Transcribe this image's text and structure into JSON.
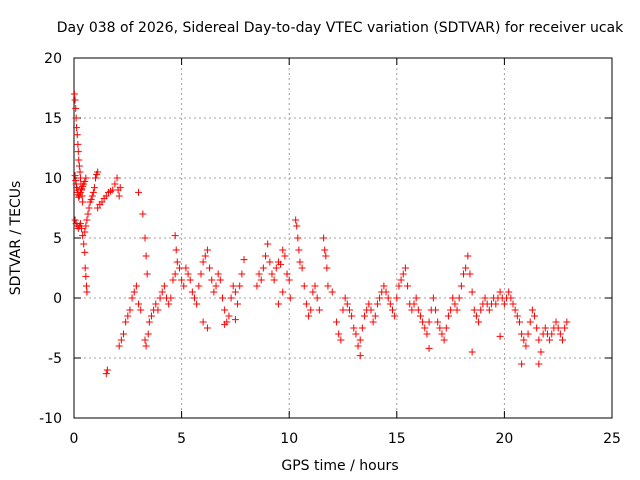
{
  "chart_data": {
    "type": "scatter",
    "title": "Day 038 of 2026, Sidereal Day-to-day VTEC variation (SDTVAR) for receiver ucak",
    "xlabel": "GPS time / hours",
    "ylabel": "SDTVAR / TECUs",
    "xlim": [
      0,
      25
    ],
    "ylim": [
      -10,
      20
    ],
    "xticks": [
      0,
      5,
      10,
      15,
      20,
      25
    ],
    "yticks": [
      -10,
      -5,
      0,
      5,
      10,
      15,
      20
    ],
    "grid": true,
    "marker": "plus",
    "color": "#ff0000",
    "series": [
      {
        "name": "SDTVAR",
        "points": [
          [
            0.02,
            17
          ],
          [
            0.05,
            16.5
          ],
          [
            0.08,
            15.8
          ],
          [
            0.1,
            15
          ],
          [
            0.12,
            14.2
          ],
          [
            0.15,
            13.6
          ],
          [
            0.18,
            12.8
          ],
          [
            0.2,
            12.2
          ],
          [
            0.22,
            11.5
          ],
          [
            0.25,
            11
          ],
          [
            0.28,
            10.5
          ],
          [
            0.3,
            10
          ],
          [
            0.32,
            9.5
          ],
          [
            0.35,
            9
          ],
          [
            0.38,
            8.5
          ],
          [
            0.4,
            8
          ],
          [
            0.05,
            10.2
          ],
          [
            0.08,
            9.8
          ],
          [
            0.1,
            9.5
          ],
          [
            0.12,
            9.2
          ],
          [
            0.15,
            9
          ],
          [
            0.18,
            8.8
          ],
          [
            0.2,
            8.6
          ],
          [
            0.22,
            8.4
          ],
          [
            0.25,
            8.5
          ],
          [
            0.3,
            8.8
          ],
          [
            0.35,
            9.1
          ],
          [
            0.4,
            9.3
          ],
          [
            0.45,
            9.5
          ],
          [
            0.5,
            9.7
          ],
          [
            0.55,
            10
          ],
          [
            0.05,
            6.5
          ],
          [
            0.1,
            6.2
          ],
          [
            0.15,
            6
          ],
          [
            0.2,
            5.8
          ],
          [
            0.25,
            6
          ],
          [
            0.3,
            6.2
          ],
          [
            0.35,
            5.8
          ],
          [
            0.4,
            5.2
          ],
          [
            0.45,
            4.5
          ],
          [
            0.5,
            3.8
          ],
          [
            0.52,
            2.5
          ],
          [
            0.55,
            1.8
          ],
          [
            0.58,
            1
          ],
          [
            0.6,
            0.5
          ],
          [
            0.5,
            5.5
          ],
          [
            0.55,
            6
          ],
          [
            0.6,
            6.5
          ],
          [
            0.65,
            7
          ],
          [
            0.7,
            7.5
          ],
          [
            0.75,
            8
          ],
          [
            0.8,
            8.2
          ],
          [
            0.85,
            8.5
          ],
          [
            0.9,
            8.8
          ],
          [
            0.95,
            9.2
          ],
          [
            1,
            10
          ],
          [
            1.05,
            10.3
          ],
          [
            1.1,
            10.5
          ],
          [
            1.1,
            7.5
          ],
          [
            1.2,
            7.8
          ],
          [
            1.3,
            8
          ],
          [
            1.4,
            8.3
          ],
          [
            1.5,
            8.5
          ],
          [
            1.6,
            8.8
          ],
          [
            1.7,
            8.9
          ],
          [
            1.8,
            9
          ],
          [
            1.9,
            9.5
          ],
          [
            2,
            10
          ],
          [
            2.05,
            9
          ],
          [
            2.1,
            8.5
          ],
          [
            2.15,
            9.2
          ],
          [
            1.55,
            -6
          ],
          [
            1.5,
            -6.3
          ],
          [
            2.1,
            -4
          ],
          [
            2.2,
            -3.5
          ],
          [
            2.3,
            -3
          ],
          [
            2.4,
            -2
          ],
          [
            2.5,
            -1.5
          ],
          [
            2.6,
            -1
          ],
          [
            2.7,
            0
          ],
          [
            2.8,
            0.5
          ],
          [
            2.9,
            1
          ],
          [
            3,
            -0.5
          ],
          [
            3.1,
            -1
          ],
          [
            3,
            8.8
          ],
          [
            3.2,
            7
          ],
          [
            3.3,
            5
          ],
          [
            3.35,
            3.5
          ],
          [
            3.4,
            2
          ],
          [
            3.3,
            -3.5
          ],
          [
            3.35,
            -4
          ],
          [
            3.45,
            -3
          ],
          [
            3.5,
            -2
          ],
          [
            3.6,
            -1.5
          ],
          [
            3.7,
            -1
          ],
          [
            3.8,
            -0.5
          ],
          [
            3.9,
            -1
          ],
          [
            4,
            0
          ],
          [
            4.1,
            0.5
          ],
          [
            4.2,
            1
          ],
          [
            4.3,
            0
          ],
          [
            4.4,
            -0.5
          ],
          [
            4.5,
            0
          ],
          [
            4.6,
            1.5
          ],
          [
            4.7,
            2
          ],
          [
            4.75,
            4
          ],
          [
            4.7,
            5.2
          ],
          [
            4.8,
            3
          ],
          [
            4.9,
            2.5
          ],
          [
            5,
            1.5
          ],
          [
            5.1,
            1
          ],
          [
            5.2,
            2.5
          ],
          [
            5.3,
            2
          ],
          [
            5.4,
            1.5
          ],
          [
            5.5,
            0.5
          ],
          [
            5.6,
            0
          ],
          [
            5.7,
            -0.5
          ],
          [
            5.8,
            1
          ],
          [
            5.9,
            2
          ],
          [
            6,
            3
          ],
          [
            6.1,
            3.5
          ],
          [
            6.2,
            4
          ],
          [
            6.3,
            2.5
          ],
          [
            6.4,
            1.5
          ],
          [
            6.5,
            0.5
          ],
          [
            6.6,
            1
          ],
          [
            6.7,
            2
          ],
          [
            6.8,
            1.5
          ],
          [
            6.9,
            0
          ],
          [
            7,
            -1
          ],
          [
            7.1,
            -2
          ],
          [
            7.2,
            -1.5
          ],
          [
            7.3,
            0
          ],
          [
            7.4,
            1
          ],
          [
            7.5,
            0.5
          ],
          [
            7.6,
            -0.5
          ],
          [
            7.7,
            1
          ],
          [
            7.8,
            2
          ],
          [
            7.9,
            3.2
          ],
          [
            6,
            -2
          ],
          [
            6.2,
            -2.5
          ],
          [
            7,
            -2.2
          ],
          [
            7.5,
            -1.8
          ],
          [
            8.5,
            1
          ],
          [
            8.6,
            2
          ],
          [
            8.7,
            1.5
          ],
          [
            8.8,
            2.5
          ],
          [
            8.9,
            3.5
          ],
          [
            9,
            4.5
          ],
          [
            9.1,
            3
          ],
          [
            9.2,
            2
          ],
          [
            9.3,
            1.5
          ],
          [
            9.4,
            2.5
          ],
          [
            9.5,
            3
          ],
          [
            9.6,
            2.8
          ],
          [
            9.7,
            4
          ],
          [
            9.8,
            3.5
          ],
          [
            9.9,
            2
          ],
          [
            10,
            1.5
          ],
          [
            10.05,
            0
          ],
          [
            9.5,
            -0.5
          ],
          [
            9.7,
            0.5
          ],
          [
            10.3,
            6.5
          ],
          [
            10.35,
            6
          ],
          [
            10.4,
            5
          ],
          [
            10.45,
            4
          ],
          [
            10.5,
            3
          ],
          [
            10.6,
            2.5
          ],
          [
            10.7,
            1
          ],
          [
            10.8,
            -0.5
          ],
          [
            10.9,
            -1.5
          ],
          [
            11,
            -1
          ],
          [
            11.1,
            0.5
          ],
          [
            11.2,
            1
          ],
          [
            11.3,
            0
          ],
          [
            11.4,
            -1
          ],
          [
            11.6,
            5
          ],
          [
            11.65,
            4
          ],
          [
            11.7,
            3.5
          ],
          [
            11.75,
            2.5
          ],
          [
            11.8,
            1
          ],
          [
            12,
            0.5
          ],
          [
            12.2,
            -2
          ],
          [
            12.3,
            -3
          ],
          [
            12.4,
            -3.5
          ],
          [
            12.5,
            -1
          ],
          [
            12.6,
            0
          ],
          [
            12.7,
            -0.5
          ],
          [
            12.8,
            -1
          ],
          [
            12.9,
            -1.5
          ],
          [
            13,
            -2.5
          ],
          [
            13.1,
            -3
          ],
          [
            13.2,
            -4
          ],
          [
            13.3,
            -3.5
          ],
          [
            13.4,
            -2.5
          ],
          [
            13.5,
            -1.5
          ],
          [
            13.6,
            -1
          ],
          [
            13.7,
            -0.5
          ],
          [
            13.8,
            -1
          ],
          [
            13.9,
            -2
          ],
          [
            14,
            -1.5
          ],
          [
            14.1,
            -0.5
          ],
          [
            14.2,
            0
          ],
          [
            14.3,
            0.5
          ],
          [
            14.4,
            1
          ],
          [
            14.5,
            0.5
          ],
          [
            14.6,
            0
          ],
          [
            14.7,
            -0.5
          ],
          [
            14.8,
            -1
          ],
          [
            14.9,
            -1.5
          ],
          [
            15,
            0
          ],
          [
            15.1,
            1
          ],
          [
            15.2,
            1.5
          ],
          [
            15.3,
            2
          ],
          [
            15.4,
            2.5
          ],
          [
            15.5,
            1
          ],
          [
            15.6,
            -0.5
          ],
          [
            15.7,
            -1
          ],
          [
            15.8,
            -0.5
          ],
          [
            15.9,
            0
          ],
          [
            16,
            -1
          ],
          [
            16.1,
            -1.5
          ],
          [
            16.2,
            -2
          ],
          [
            16.3,
            -2.5
          ],
          [
            16.4,
            -3
          ],
          [
            16.5,
            -2
          ],
          [
            16.6,
            -1
          ],
          [
            16.7,
            0
          ],
          [
            16.8,
            -1
          ],
          [
            16.9,
            -2
          ],
          [
            17,
            -2.5
          ],
          [
            17.1,
            -3
          ],
          [
            17.2,
            -3.5
          ],
          [
            17.3,
            -2.5
          ],
          [
            17.4,
            -1.5
          ],
          [
            17.5,
            -1
          ],
          [
            17.6,
            0
          ],
          [
            17.7,
            -0.5
          ],
          [
            17.8,
            -1
          ],
          [
            17.9,
            0
          ],
          [
            18,
            1
          ],
          [
            18.1,
            2
          ],
          [
            18.2,
            2.5
          ],
          [
            18.3,
            3.5
          ],
          [
            18.4,
            2
          ],
          [
            18.5,
            0.5
          ],
          [
            18.6,
            -1
          ],
          [
            18.7,
            -1.5
          ],
          [
            18.8,
            -2
          ],
          [
            18.9,
            -1
          ],
          [
            19,
            -0.5
          ],
          [
            19.1,
            0
          ],
          [
            19.2,
            -0.5
          ],
          [
            19.3,
            -1
          ],
          [
            19.4,
            -0.5
          ],
          [
            19.5,
            0
          ],
          [
            19.6,
            -0.5
          ],
          [
            19.7,
            0
          ],
          [
            19.8,
            0.5
          ],
          [
            19.9,
            0
          ],
          [
            20,
            -0.5
          ],
          [
            20.1,
            0
          ],
          [
            20.2,
            0.5
          ],
          [
            20.3,
            0
          ],
          [
            20.4,
            -0.5
          ],
          [
            20.5,
            -1
          ],
          [
            20.6,
            -1.5
          ],
          [
            20.7,
            -2
          ],
          [
            20.8,
            -3
          ],
          [
            20.9,
            -3.5
          ],
          [
            21,
            -4
          ],
          [
            21.1,
            -3
          ],
          [
            21.2,
            -2
          ],
          [
            21.3,
            -1
          ],
          [
            21.4,
            -1.5
          ],
          [
            21.5,
            -2.5
          ],
          [
            21.6,
            -3.5
          ],
          [
            21.7,
            -4.5
          ],
          [
            21.8,
            -3
          ],
          [
            21.9,
            -2.5
          ],
          [
            22,
            -3
          ],
          [
            22.1,
            -3.5
          ],
          [
            22.2,
            -3
          ],
          [
            22.3,
            -2.5
          ],
          [
            22.4,
            -2
          ],
          [
            22.5,
            -2.5
          ],
          [
            22.6,
            -3
          ],
          [
            22.7,
            -3.5
          ],
          [
            22.8,
            -2.5
          ],
          [
            22.9,
            -2
          ],
          [
            13.3,
            -4.8
          ],
          [
            16.5,
            -4.2
          ],
          [
            18.5,
            -4.5
          ],
          [
            20.8,
            -5.5
          ],
          [
            21.6,
            -5.5
          ],
          [
            19.8,
            -3.2
          ]
        ]
      }
    ]
  }
}
